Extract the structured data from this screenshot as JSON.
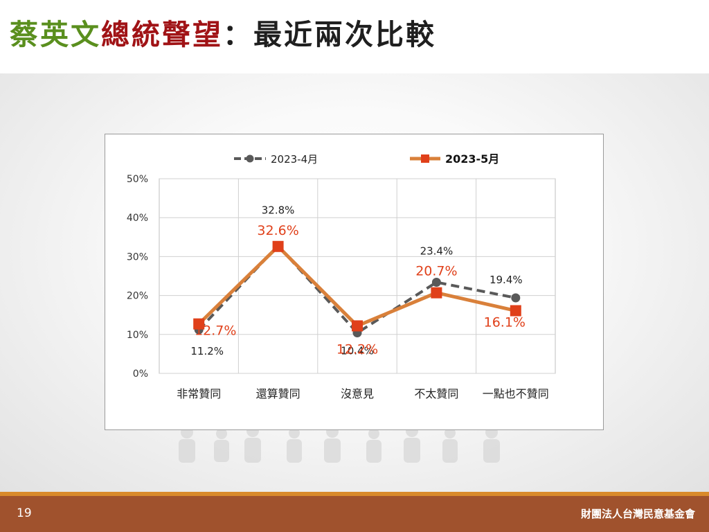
{
  "slide": {
    "title_parts": [
      "蔡英文",
      "總統聲望",
      "：最近兩次比較"
    ],
    "page_number": "19",
    "organization": "財團法人台灣民意基金會"
  },
  "colors": {
    "title_green": "#5a8f1e",
    "title_red": "#a01316",
    "series_april": "#595959",
    "series_may_line": "#d9803a",
    "series_may_marker": "#e0401a",
    "label_may": "#e0401a",
    "footer": "#a0522d",
    "footer_stripe": "#d98a2b"
  },
  "chart_data": {
    "type": "line",
    "categories": [
      "非常贊同",
      "還算贊同",
      "沒意見",
      "不太贊同",
      "一點也不贊同"
    ],
    "series": [
      {
        "name": "2023-4月",
        "values": [
          11.2,
          32.8,
          10.4,
          23.4,
          19.4
        ],
        "labels": [
          "11.2%",
          "32.8%",
          "10.4%",
          "23.4%",
          "19.4%"
        ],
        "style": "dashed",
        "marker": "circle"
      },
      {
        "name": "2023-5月",
        "values": [
          12.7,
          32.6,
          12.2,
          20.7,
          16.1
        ],
        "labels": [
          "12.7%",
          "32.6%",
          "12.2%",
          "20.7%",
          "16.1%"
        ],
        "style": "solid",
        "marker": "square"
      }
    ],
    "ylim": [
      0,
      50
    ],
    "yticks": [
      "0%",
      "10%",
      "20%",
      "30%",
      "40%",
      "50%"
    ],
    "grid": true,
    "legend": "top"
  }
}
